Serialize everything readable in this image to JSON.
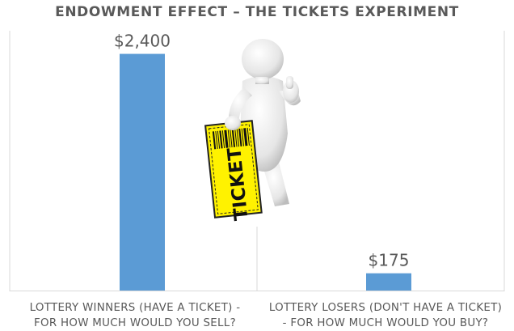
{
  "chart_data": {
    "type": "bar",
    "title": "ENDOWMENT EFFECT – THE TICKETS EXPERIMENT",
    "categories": [
      [
        "LOTTERY WINNERS  (HAVE A TICKET) -",
        "FOR HOW MUCH WOULD YOU SELL?"
      ],
      [
        "LOTTERY LOSERS (DON'T HAVE A TICKET)",
        "- FOR HOW MUCH WOULD YOU BUY?"
      ]
    ],
    "values": [
      2400,
      175
    ],
    "data_labels": [
      "$2,400",
      "$175"
    ],
    "ylim": [
      0,
      2700
    ],
    "grid": false,
    "bar_color": "#5b9bd5",
    "xlabel": "",
    "ylabel": ""
  },
  "illustration": {
    "figure": "figure-holding-ticket",
    "ticket_text": "TICKET",
    "ticket_color": "#fff200"
  }
}
